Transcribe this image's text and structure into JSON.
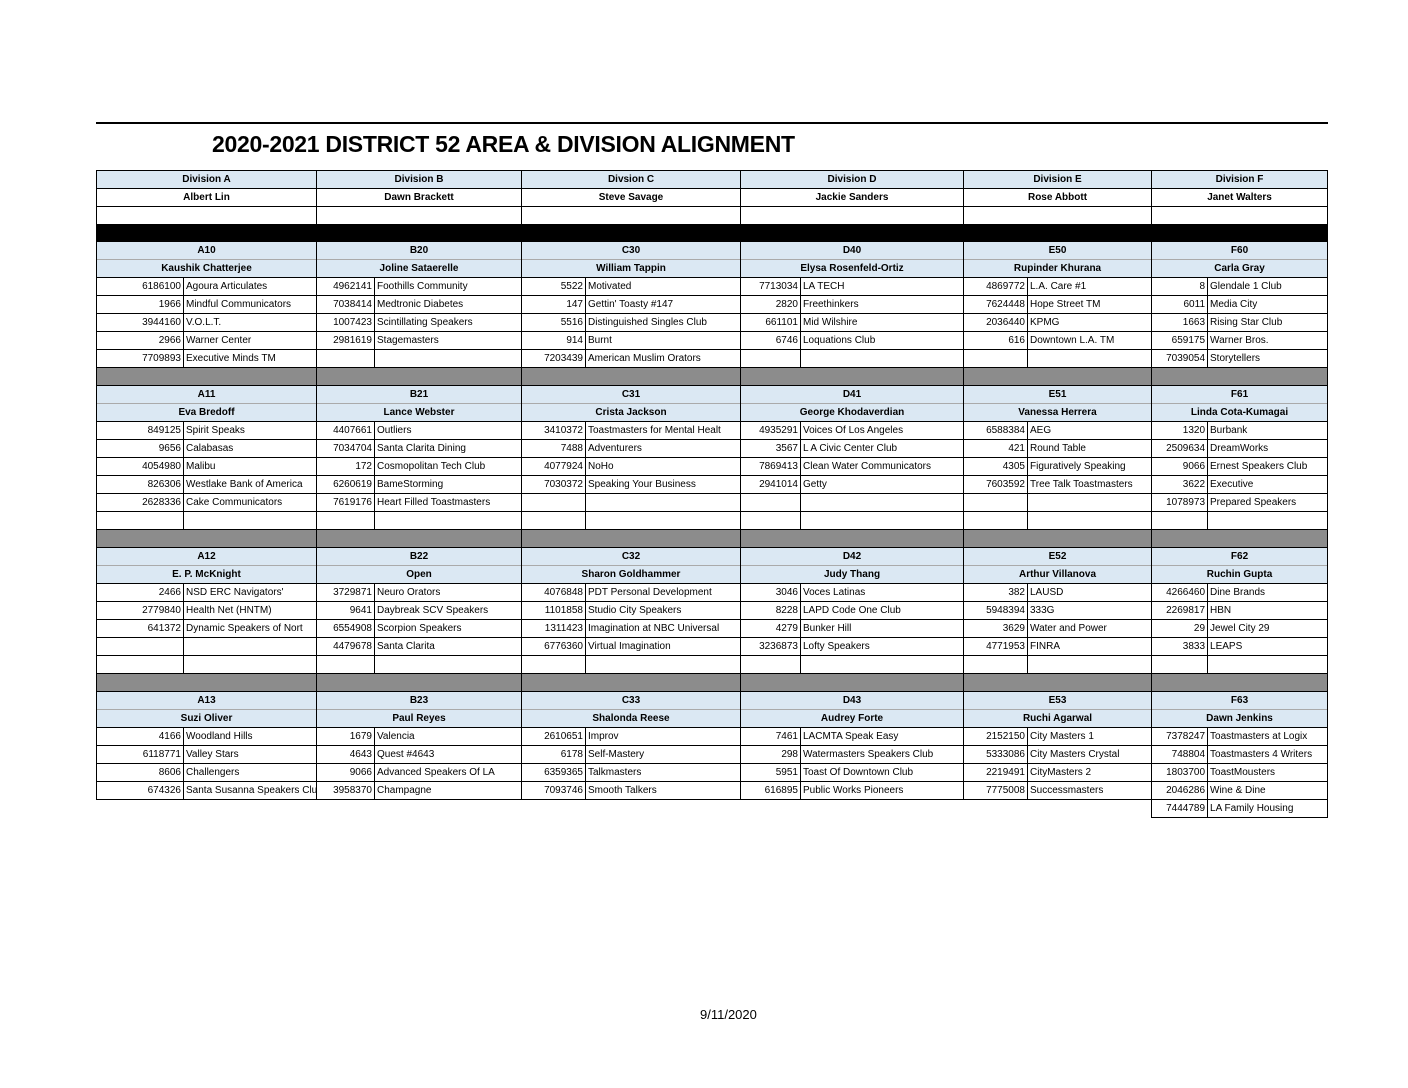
{
  "title": "2020-2021 DISTRICT 52 AREA & DIVISION ALIGNMENT",
  "date": "9/11/2020",
  "divisions": [
    {
      "name": "Division A",
      "director": "Albert Lin"
    },
    {
      "name": "Division B",
      "director": "Dawn Brackett"
    },
    {
      "name": "Divsion C",
      "director": "Steve Savage"
    },
    {
      "name": "Division D",
      "director": "Jackie Sanders"
    },
    {
      "name": "Division E",
      "director": "Rose Abbott"
    },
    {
      "name": "Division F",
      "director": "Janet Walters"
    }
  ],
  "blocks": [
    {
      "areas": [
        {
          "code": "A10",
          "director": "Kaushik Chatterjee",
          "clubs": [
            {
              "id": "6186100",
              "name": "Agoura Articulates"
            },
            {
              "id": "1966",
              "name": "Mindful Communicators"
            },
            {
              "id": "3944160",
              "name": "V.O.L.T."
            },
            {
              "id": "2966",
              "name": "Warner Center"
            },
            {
              "id": "7709893",
              "name": "Executive Minds TM"
            }
          ]
        },
        {
          "code": "B20",
          "director": "Joline Sataerelle",
          "clubs": [
            {
              "id": "4962141",
              "name": "Foothills Community"
            },
            {
              "id": "7038414",
              "name": "Medtronic Diabetes"
            },
            {
              "id": "1007423",
              "name": "Scintillating Speakers"
            },
            {
              "id": "2981619",
              "name": "Stagemasters"
            }
          ]
        },
        {
          "code": "C30",
          "director": "William Tappin",
          "clubs": [
            {
              "id": "5522",
              "name": "Motivated"
            },
            {
              "id": "147",
              "name": "Gettin' Toasty #147"
            },
            {
              "id": "5516",
              "name": "Distinguished Singles Club"
            },
            {
              "id": "914",
              "name": "Burnt"
            },
            {
              "id": "7203439",
              "name": "American Muslim Orators"
            }
          ]
        },
        {
          "code": "D40",
          "director": "Elysa Rosenfeld-Ortiz",
          "clubs": [
            {
              "id": "7713034",
              "name": "LA TECH"
            },
            {
              "id": "2820",
              "name": "Freethinkers"
            },
            {
              "id": "661101",
              "name": "Mid Wilshire"
            },
            {
              "id": "6746",
              "name": "Loquations Club"
            }
          ]
        },
        {
          "code": "E50",
          "director": "Rupinder Khurana",
          "clubs": [
            {
              "id": "4869772",
              "name": "L.A. Care  #1"
            },
            {
              "id": "7624448",
              "name": "Hope Street TM"
            },
            {
              "id": "2036440",
              "name": "KPMG"
            },
            {
              "id": "616",
              "name": "Downtown L.A. TM"
            }
          ]
        },
        {
          "code": "F60",
          "director": "Carla Gray",
          "clubs": [
            {
              "id": "8",
              "name": "Glendale 1 Club"
            },
            {
              "id": "6011",
              "name": "Media City"
            },
            {
              "id": "1663",
              "name": "Rising Star Club"
            },
            {
              "id": "659175",
              "name": "Warner Bros."
            },
            {
              "id": "7039054",
              "name": "Storytellers"
            }
          ]
        }
      ]
    },
    {
      "areas": [
        {
          "code": "A11",
          "director": "Eva Bredoff",
          "clubs": [
            {
              "id": "849125",
              "name": "Spirit Speaks"
            },
            {
              "id": "9656",
              "name": "Calabasas"
            },
            {
              "id": "4054980",
              "name": "Malibu"
            },
            {
              "id": "826306",
              "name": "Westlake Bank of America"
            },
            {
              "id": "2628336",
              "name": "Cake Communicators"
            }
          ]
        },
        {
          "code": "B21",
          "director": "Lance Webster",
          "clubs": [
            {
              "id": "4407661",
              "name": "Outliers"
            },
            {
              "id": "7034704",
              "name": "Santa Clarita Dining"
            },
            {
              "id": "172",
              "name": "Cosmopolitan Tech Club"
            },
            {
              "id": "6260619",
              "name": "BameStorming"
            },
            {
              "id": "7619176",
              "name": "Heart Filled Toastmasters"
            }
          ]
        },
        {
          "code": "C31",
          "director": "Crista Jackson",
          "clubs": [
            {
              "id": "3410372",
              "name": "Toastmasters for Mental Healt"
            },
            {
              "id": "7488",
              "name": "Adventurers"
            },
            {
              "id": "4077924",
              "name": "NoHo"
            },
            {
              "id": "7030372",
              "name": "Speaking Your Business"
            }
          ]
        },
        {
          "code": "D41",
          "director": "George Khodaverdian",
          "clubs": [
            {
              "id": "4935291",
              "name": "Voices Of Los Angeles"
            },
            {
              "id": "3567",
              "name": "L A Civic Center Club"
            },
            {
              "id": "7869413",
              "name": "Clean Water Communicators"
            },
            {
              "id": "2941014",
              "name": "Getty"
            }
          ]
        },
        {
          "code": "E51",
          "director": "Vanessa Herrera",
          "clubs": [
            {
              "id": "6588384",
              "name": "AEG"
            },
            {
              "id": "421",
              "name": "Round Table"
            },
            {
              "id": "4305",
              "name": "Figuratively Speaking"
            },
            {
              "id": "7603592",
              "name": "Tree Talk Toastmasters"
            }
          ]
        },
        {
          "code": "F61",
          "director": "Linda Cota-Kumagai",
          "clubs": [
            {
              "id": "1320",
              "name": "Burbank"
            },
            {
              "id": "2509634",
              "name": "DreamWorks"
            },
            {
              "id": "9066",
              "name": "Ernest Speakers Club"
            },
            {
              "id": "3622",
              "name": "Executive"
            },
            {
              "id": "1078973",
              "name": "Prepared Speakers"
            }
          ]
        }
      ]
    },
    {
      "areas": [
        {
          "code": "A12",
          "director": "E. P. McKnight",
          "clubs": [
            {
              "id": "2466",
              "name": "NSD ERC Navigators'"
            },
            {
              "id": "2779840",
              "name": "Health Net  (HNTM)"
            },
            {
              "id": "641372",
              "name": "Dynamic Speakers of Nort"
            }
          ]
        },
        {
          "code": "B22",
          "director": "Open",
          "clubs": [
            {
              "id": "3729871",
              "name": "Neuro Orators"
            },
            {
              "id": "9641",
              "name": "Daybreak SCV Speakers"
            },
            {
              "id": "6554908",
              "name": "Scorpion Speakers"
            },
            {
              "id": "4479678",
              "name": "Santa Clarita"
            }
          ]
        },
        {
          "code": "C32",
          "director": "Sharon Goldhammer",
          "clubs": [
            {
              "id": "4076848",
              "name": "PDT Personal Development"
            },
            {
              "id": "1101858",
              "name": "Studio City Speakers"
            },
            {
              "id": "1311423",
              "name": "Imagination at NBC Universal"
            },
            {
              "id": "6776360",
              "name": "Virtual Imagination"
            }
          ]
        },
        {
          "code": "D42",
          "director": "Judy Thang",
          "clubs": [
            {
              "id": "3046",
              "name": "Voces Latinas"
            },
            {
              "id": "8228",
              "name": "LAPD Code One Club"
            },
            {
              "id": "4279",
              "name": "Bunker Hill"
            },
            {
              "id": "3236873",
              "name": "Lofty Speakers"
            }
          ]
        },
        {
          "code": "E52",
          "director": "Arthur Villanova",
          "clubs": [
            {
              "id": "382",
              "name": "LAUSD"
            },
            {
              "id": "5948394",
              "name": "333G"
            },
            {
              "id": "3629",
              "name": "Water and Power"
            },
            {
              "id": "4771953",
              "name": "FINRA"
            }
          ]
        },
        {
          "code": "F62",
          "director": "Ruchin Gupta",
          "clubs": [
            {
              "id": "4266460",
              "name": "Dine Brands"
            },
            {
              "id": "2269817",
              "name": "HBN"
            },
            {
              "id": "29",
              "name": "Jewel City 29"
            },
            {
              "id": "3833",
              "name": "LEAPS"
            }
          ]
        }
      ]
    },
    {
      "areas": [
        {
          "code": "A13",
          "director": "Suzi Oliver",
          "clubs": [
            {
              "id": "4166",
              "name": "Woodland Hills"
            },
            {
              "id": "6118771",
              "name": "Valley Stars"
            },
            {
              "id": "8606",
              "name": "Challengers"
            },
            {
              "id": "674326",
              "name": "Santa Susanna Speakers Club"
            }
          ]
        },
        {
          "code": "B23",
          "director": "Paul Reyes",
          "clubs": [
            {
              "id": "1679",
              "name": "Valencia"
            },
            {
              "id": "4643",
              "name": "Quest  #4643"
            },
            {
              "id": "9066",
              "name": "Advanced Speakers Of LA"
            },
            {
              "id": "3958370",
              "name": "Champagne"
            }
          ]
        },
        {
          "code": "C33",
          "director": "Shalonda Reese",
          "clubs": [
            {
              "id": "2610651",
              "name": "Improv"
            },
            {
              "id": "6178",
              "name": "Self-Mastery"
            },
            {
              "id": "6359365",
              "name": "Talkmasters"
            },
            {
              "id": "7093746",
              "name": "Smooth Talkers"
            }
          ]
        },
        {
          "code": "D43",
          "director": "Audrey Forte",
          "clubs": [
            {
              "id": "7461",
              "name": "LACMTA Speak Easy"
            },
            {
              "id": "298",
              "name": "Watermasters Speakers Club"
            },
            {
              "id": "5951",
              "name": "Toast Of Downtown Club"
            },
            {
              "id": "616895",
              "name": "Public Works Pioneers"
            }
          ]
        },
        {
          "code": "E53",
          "director": "Ruchi Agarwal",
          "clubs": [
            {
              "id": "2152150",
              "name": "City Masters 1"
            },
            {
              "id": "5333086",
              "name": "City Masters Crystal"
            },
            {
              "id": "2219491",
              "name": "CityMasters 2"
            },
            {
              "id": "7775008",
              "name": "Successmasters"
            }
          ]
        },
        {
          "code": "F63",
          "director": "Dawn Jenkins",
          "clubs": [
            {
              "id": "7378247",
              "name": "Toastmasters at Logix"
            },
            {
              "id": "748804",
              "name": "Toastmasters 4 Writers"
            },
            {
              "id": "1803700",
              "name": "ToastMousters"
            },
            {
              "id": "2046286",
              "name": "Wine & Dine"
            },
            {
              "id": "7444789",
              "name": "LA Family Housing"
            }
          ]
        }
      ]
    }
  ]
}
